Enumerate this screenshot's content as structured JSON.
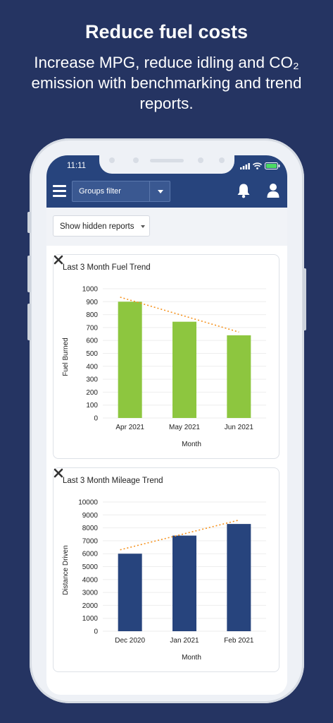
{
  "promo": {
    "title": "Reduce fuel costs",
    "subtitle": "Increase MPG, reduce idling and CO₂ emission with benchmarking and trend reports."
  },
  "status_bar": {
    "time": "11:11"
  },
  "app_bar": {
    "groups_filter": "Groups filter"
  },
  "toolbar": {
    "hidden_reports": "Show hidden reports"
  },
  "colors": {
    "navy": "#27447d",
    "fuel_bar": "#8dc63f",
    "mileage_bar": "#27447d",
    "trend": "#f5921e"
  },
  "chart_data": [
    {
      "type": "bar",
      "title": "Last 3 Month Fuel Trend",
      "xlabel": "Month",
      "ylabel": "Fuel Burned",
      "categories": [
        "Apr 2021",
        "May 2021",
        "Jun 2021"
      ],
      "values": [
        900,
        745,
        640
      ],
      "yticks": [
        "0",
        "100",
        "200",
        "300",
        "400",
        "500",
        "600",
        "700",
        "800",
        "900",
        "1000"
      ],
      "ylim": [
        0,
        1000
      ],
      "trendline": [
        935,
        665
      ],
      "grid": true
    },
    {
      "type": "bar",
      "title": "Last 3 Month Mileage Trend",
      "xlabel": "Month",
      "ylabel": "Distance Driven",
      "categories": [
        "Dec 2020",
        "Jan 2021",
        "Feb 2021"
      ],
      "values": [
        6000,
        7400,
        8300
      ],
      "yticks": [
        "0",
        "1000",
        "2000",
        "3000",
        "4000",
        "5000",
        "6000",
        "7000",
        "8000",
        "9000",
        "10000"
      ],
      "ylim": [
        0,
        10000
      ],
      "trendline": [
        6300,
        8600
      ],
      "grid": true
    }
  ]
}
